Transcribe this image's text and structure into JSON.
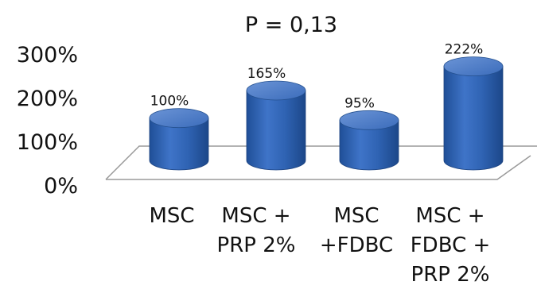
{
  "chart_data": {
    "type": "bar",
    "title": "P = 0,13",
    "xlabel": "",
    "ylabel": "",
    "categories": [
      [
        "MSC"
      ],
      [
        "MSC +",
        "PRP 2%"
      ],
      [
        "MSC",
        "+FDBC"
      ],
      [
        "MSC +",
        "FDBC +",
        "PRP 2%"
      ]
    ],
    "values": [
      100,
      165,
      95,
      222
    ],
    "value_labels": [
      "100%",
      "165%",
      "95%",
      "222%"
    ],
    "ytick_labels": [
      "0%",
      "100%",
      "200%",
      "300%"
    ],
    "ylim": [
      0,
      300
    ],
    "grid": false,
    "legend": "none",
    "style": "3d-cylinder",
    "bar_color": "#2f63b3",
    "bar_top_color": "#5a86cc"
  }
}
